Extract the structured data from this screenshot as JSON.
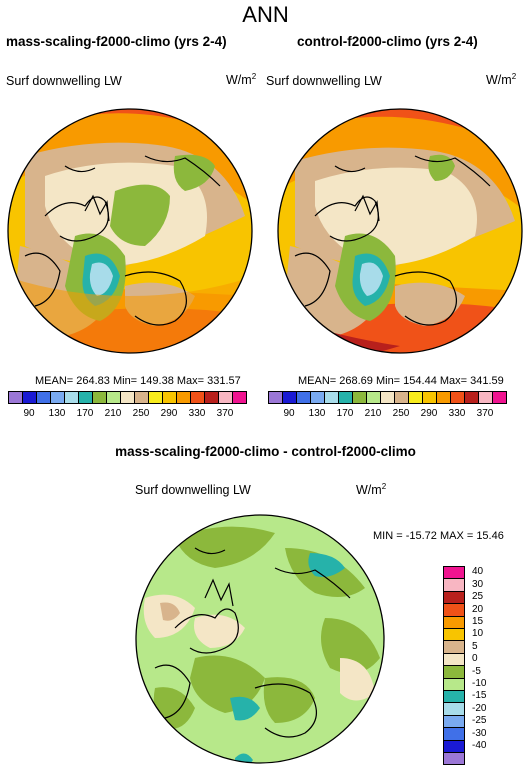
{
  "page_title": "ANN",
  "panel_left": {
    "title": "mass-scaling-f2000-climo (yrs 2-4)",
    "variable": "Surf downwelling LW",
    "units": "W/m",
    "units_sup": "2",
    "stats": "MEAN= 264.83  Min= 149.38  Max= 331.57"
  },
  "panel_right": {
    "title": "control-f2000-climo (yrs 2-4)",
    "variable": "Surf downwelling LW",
    "units": "W/m",
    "units_sup": "2",
    "stats": "MEAN= 268.69  Min= 154.44  Max= 341.59"
  },
  "panel_diff": {
    "title": "mass-scaling-f2000-climo - control-f2000-climo",
    "variable": "Surf downwelling LW",
    "units": "W/m",
    "units_sup": "2",
    "stats": "MIN = -15.72  MAX =  15.46"
  },
  "colorbar_main": {
    "colors": [
      "#9b77d6",
      "#1a1ad4",
      "#4070e8",
      "#7aaaf0",
      "#a8dcea",
      "#26b2aa",
      "#8cb83c",
      "#b7e88a",
      "#f4e6c6",
      "#d8b48c",
      "#f8ec1c",
      "#f8c400",
      "#f89a00",
      "#f05218",
      "#b8201c",
      "#f8b6c2",
      "#f01490"
    ],
    "labels": [
      "90",
      "130",
      "170",
      "210",
      "250",
      "290",
      "330",
      "370"
    ]
  },
  "colorbar_diff": {
    "colors": [
      "#f01490",
      "#f8b6c2",
      "#b8201c",
      "#f05218",
      "#f89a00",
      "#f8c400",
      "#d8b48c",
      "#f4e6c6",
      "#8cb83c",
      "#b7e88a",
      "#26b2aa",
      "#a8dcea",
      "#7aaaf0",
      "#4070e8",
      "#1a1ad4",
      "#9b77d6"
    ],
    "labels": [
      "40",
      "30",
      "25",
      "20",
      "15",
      "10",
      "5",
      "0",
      "-5",
      "-10",
      "-15",
      "-20",
      "-25",
      "-30",
      "-40"
    ]
  }
}
